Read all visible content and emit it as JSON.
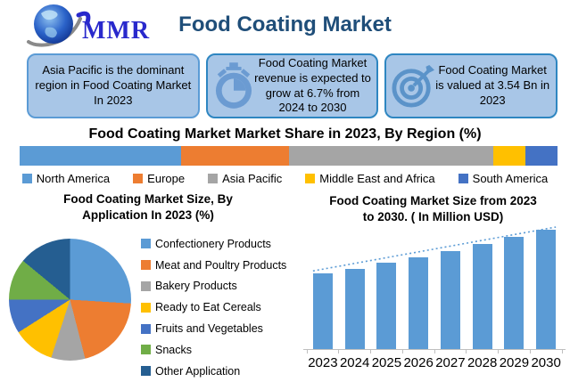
{
  "header": {
    "logo": {
      "text": "MMR"
    },
    "title": "Food Coating Market"
  },
  "highlights": [
    {
      "icon": "none",
      "text": "Asia Pacific is the dominant region in Food Coating Market In 2023"
    },
    {
      "icon": "stopwatch-icon",
      "text": "Food Coating Market revenue is expected to grow at 6.7% from 2024 to 2030"
    },
    {
      "icon": "target-icon",
      "text": "Food Coating Market is valued at 3.54 Bn in 2023"
    }
  ],
  "chart_data": [
    {
      "id": "region-share",
      "type": "bar",
      "subtype": "stacked-horizontal-single",
      "title": "Food Coating Market Market Share in 2023, By Region (%)",
      "unit": "%",
      "categories": [
        "North America",
        "Europe",
        "Asia Pacific",
        "Middle East and Africa",
        "South America"
      ],
      "values": [
        30,
        20,
        38,
        6,
        6
      ],
      "colors": [
        "#5b9bd5",
        "#ed7d31",
        "#a5a5a5",
        "#ffc000",
        "#4472c4"
      ],
      "legend_position": "bottom",
      "grid": false
    },
    {
      "id": "application-share",
      "type": "pie",
      "title": "Food Coating Market Size, By Application In 2023 (%)",
      "unit": "%",
      "labels": [
        "Confectionery Products",
        "Meat and Poultry Products",
        "Bakery Products",
        "Ready to Eat Cereals",
        "Fruits and Vegetables",
        "Snacks",
        "Other Application"
      ],
      "values": [
        26,
        20,
        9,
        11,
        9,
        11,
        14
      ],
      "colors": [
        "#5b9bd5",
        "#ed7d31",
        "#a5a5a5",
        "#ffc000",
        "#4472c4",
        "#70ad47",
        "#255e91"
      ],
      "legend_position": "right",
      "start_angle_deg": 0
    },
    {
      "id": "size-forecast",
      "type": "bar",
      "title": "Food Coating Market Size from 2023 to 2030. ( In Million  USD)",
      "xlabel": "",
      "ylabel": "Million USD",
      "categories": [
        "2023",
        "2024",
        "2025",
        "2026",
        "2027",
        "2028",
        "2029",
        "2030"
      ],
      "values": [
        3540,
        3777,
        4030,
        4300,
        4588,
        4896,
        5224,
        5574
      ],
      "bar_color": "#5b9bd5",
      "trendline": true,
      "trendline_style": "dotted",
      "y_axis_labels_visible": false,
      "grid": false
    }
  ],
  "colors": {
    "title_blue": "#1f4e79",
    "card_fill": "#a8c6e7",
    "card_border": "#5b9bd5",
    "icon_blue": "#6b9bd2"
  }
}
